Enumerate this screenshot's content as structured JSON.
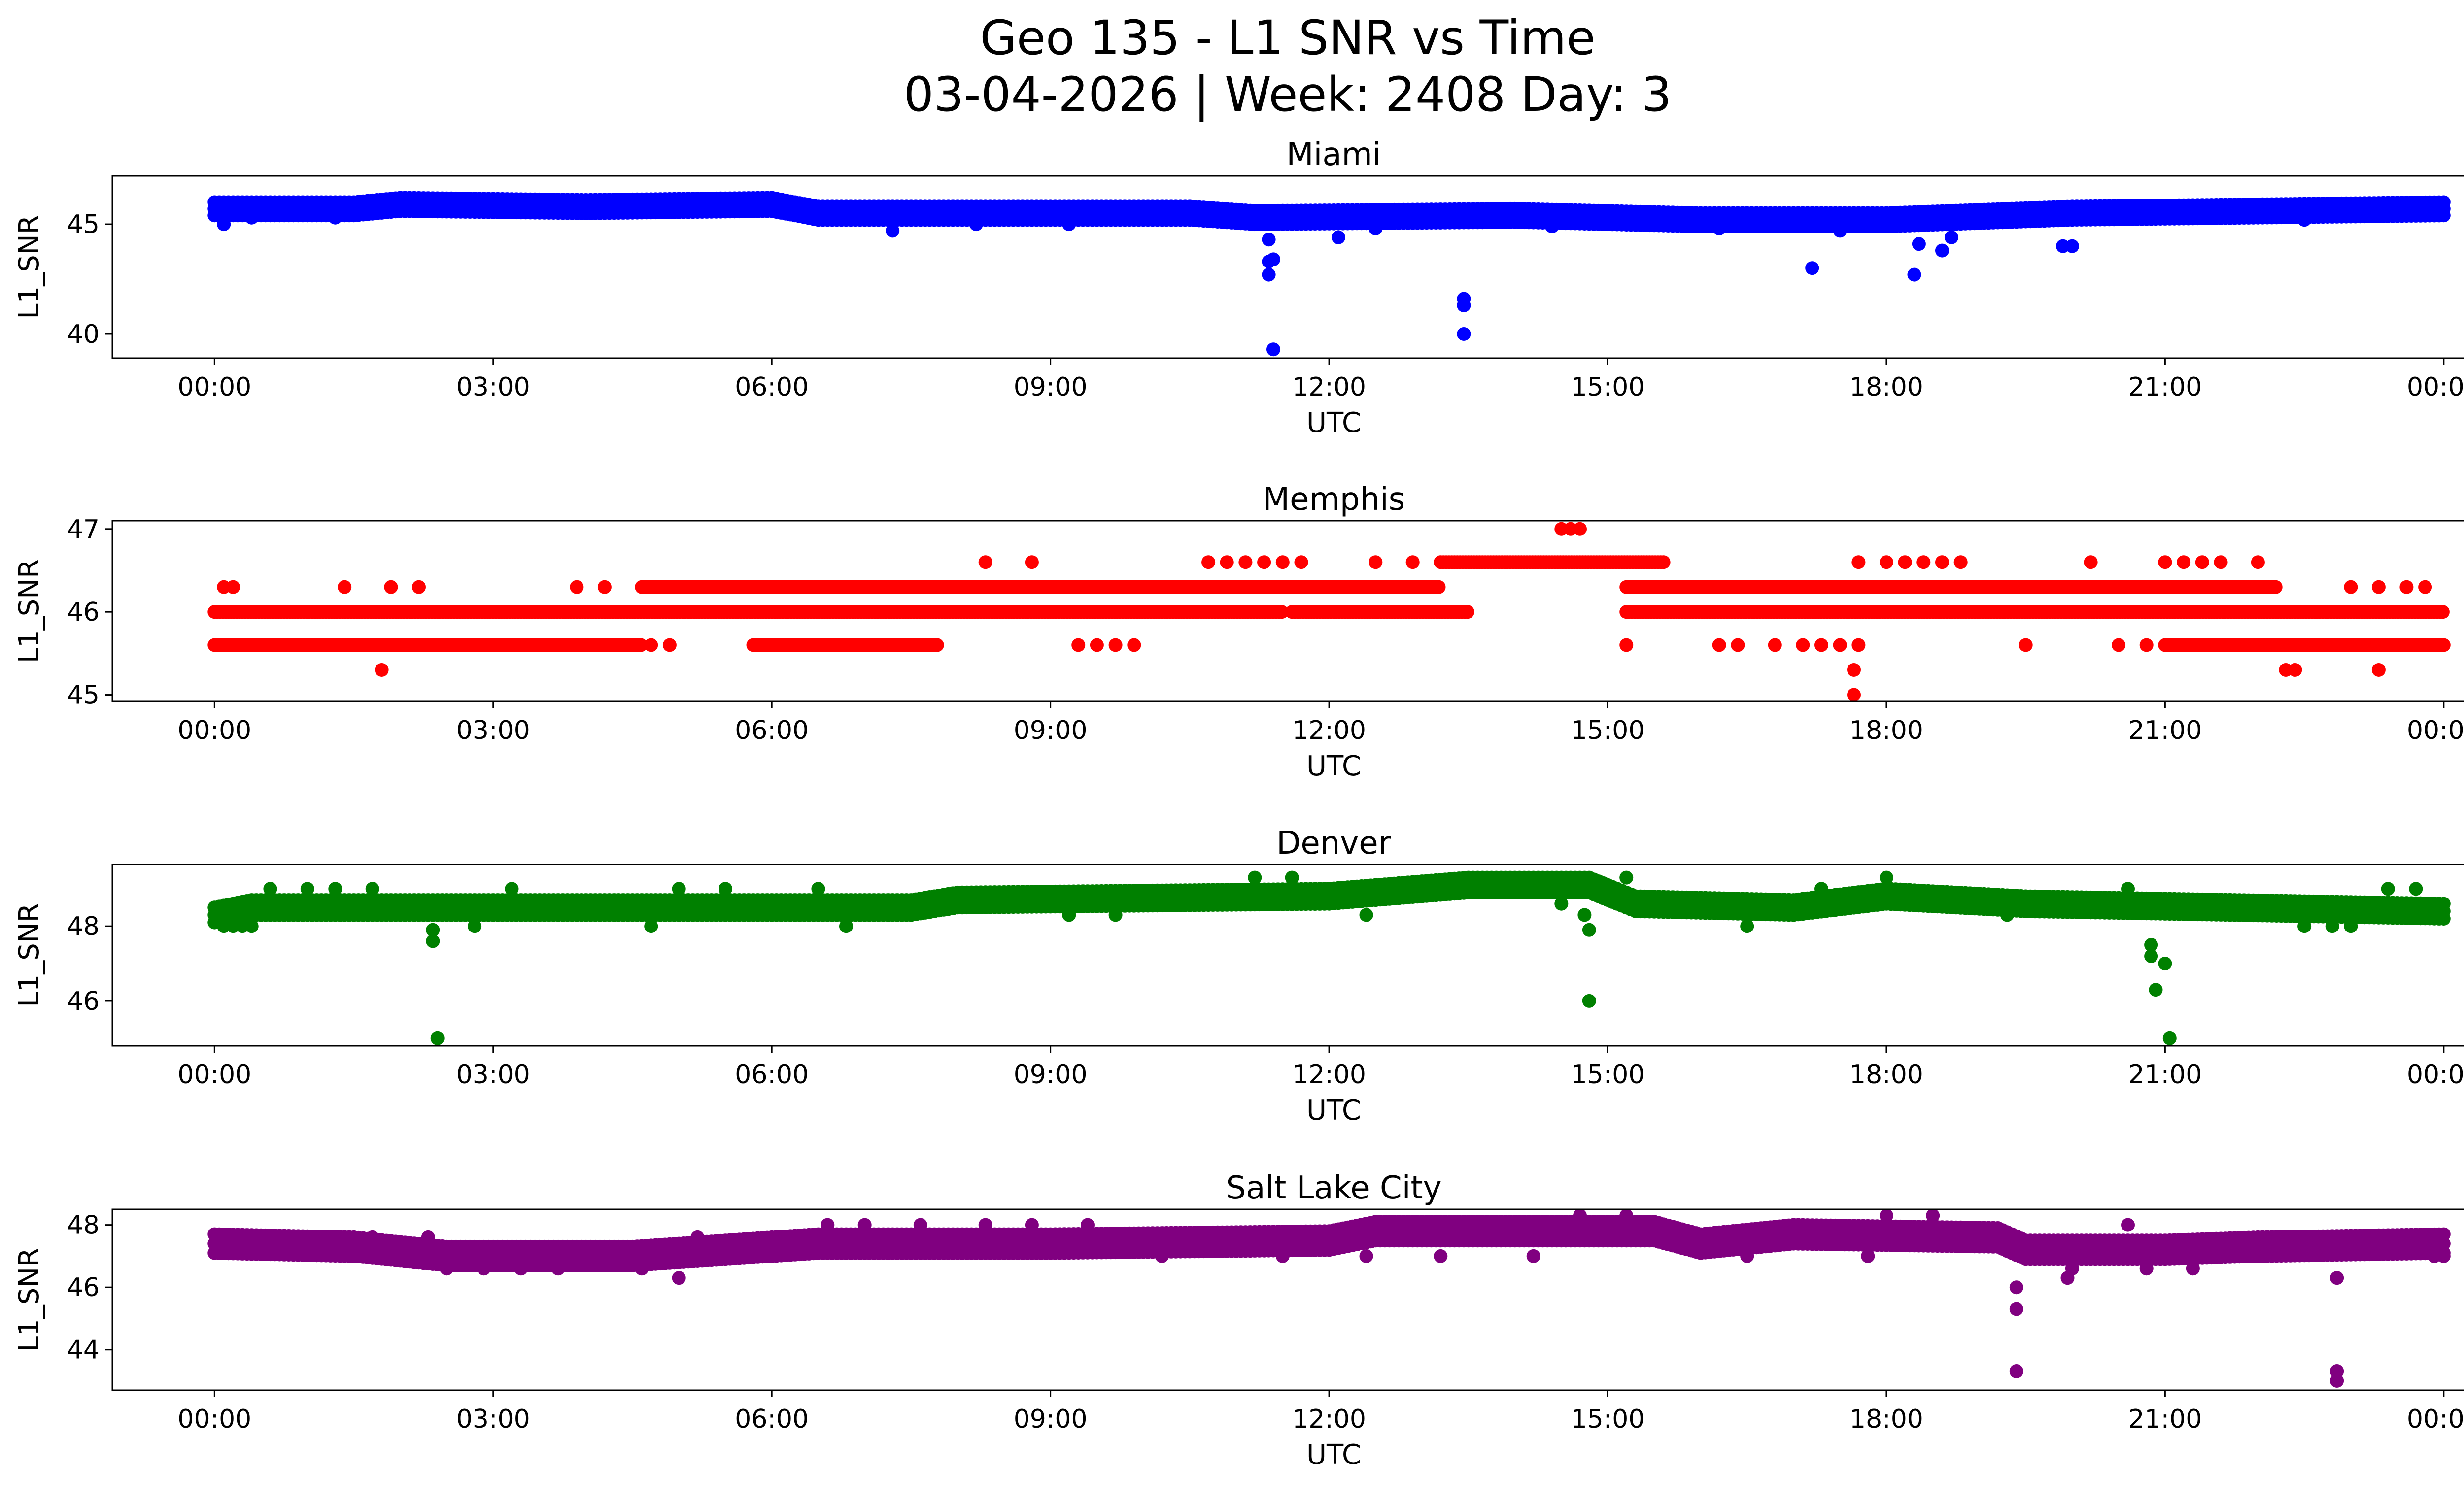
{
  "figure": {
    "title_line1": "Geo 135 - L1 SNR vs Time",
    "title_line2": "03-04-2026 | Week: 2408 Day: 3"
  },
  "chart_data": [
    {
      "type": "scatter",
      "title": "Miami",
      "xlabel": "UTC",
      "ylabel": "L1_SNR",
      "color": "#0000ff",
      "xlim_hours": [
        -1.1,
        25.2
      ],
      "ylim": [
        38.9,
        47.2
      ],
      "xticks_hours": [
        0,
        3,
        6,
        9,
        12,
        15,
        18,
        21,
        24
      ],
      "xtick_labels": [
        "00:00",
        "03:00",
        "06:00",
        "09:00",
        "12:00",
        "15:00",
        "18:00",
        "21:00",
        "00:00"
      ],
      "yticks": [
        40,
        45
      ],
      "baseline": [
        [
          0,
          45.8
        ],
        [
          1.5,
          45.8
        ],
        [
          2,
          46.0
        ],
        [
          4,
          45.9
        ],
        [
          6,
          46.0
        ],
        [
          6.5,
          45.6
        ],
        [
          9,
          45.6
        ],
        [
          10.5,
          45.6
        ],
        [
          11.2,
          45.4
        ],
        [
          14,
          45.5
        ],
        [
          16,
          45.3
        ],
        [
          18,
          45.3
        ],
        [
          20,
          45.6
        ],
        [
          24,
          45.8
        ]
      ],
      "band_levels": [
        -0.4,
        -0.1,
        0.2
      ],
      "band_step_hours": 0.05,
      "outliers": [
        [
          0.1,
          45.0
        ],
        [
          0.4,
          45.3
        ],
        [
          1.3,
          45.3
        ],
        [
          7.3,
          44.7
        ],
        [
          8.2,
          45.0
        ],
        [
          9.2,
          45.0
        ],
        [
          11.35,
          44.3
        ],
        [
          11.35,
          43.3
        ],
        [
          11.35,
          42.7
        ],
        [
          11.4,
          39.3
        ],
        [
          11.4,
          43.4
        ],
        [
          12.1,
          44.4
        ],
        [
          12.5,
          44.8
        ],
        [
          13.45,
          41.6
        ],
        [
          13.45,
          41.3
        ],
        [
          13.45,
          40.0
        ],
        [
          14.4,
          44.9
        ],
        [
          16.2,
          44.8
        ],
        [
          17.2,
          43.0
        ],
        [
          17.5,
          44.7
        ],
        [
          18.3,
          42.7
        ],
        [
          18.35,
          44.1
        ],
        [
          18.6,
          43.8
        ],
        [
          18.7,
          44.4
        ],
        [
          19.9,
          44.0
        ],
        [
          20.0,
          44.0
        ],
        [
          22.5,
          45.2
        ]
      ]
    },
    {
      "type": "scatter",
      "title": "Memphis",
      "xlabel": "UTC",
      "ylabel": "L1_SNR",
      "color": "#ff0000",
      "xlim_hours": [
        -1.1,
        25.2
      ],
      "ylim": [
        44.92,
        47.1
      ],
      "xticks_hours": [
        0,
        3,
        6,
        9,
        12,
        15,
        18,
        21,
        24
      ],
      "xtick_labels": [
        "00:00",
        "03:00",
        "06:00",
        "09:00",
        "12:00",
        "15:00",
        "18:00",
        "21:00",
        "00:00"
      ],
      "yticks": [
        45,
        46,
        47
      ],
      "levels": [
        {
          "y": 46.0,
          "segments": [
            [
              0,
              11.5
            ],
            [
              11.6,
              13.5
            ],
            [
              15.2,
              24.0
            ]
          ]
        },
        {
          "y": 45.6,
          "segments": [
            [
              0,
              4.6
            ],
            [
              5.8,
              7.8
            ],
            [
              21.0,
              24.0
            ]
          ]
        },
        {
          "y": 46.3,
          "segments": [
            [
              4.6,
              13.2
            ],
            [
              15.2,
              22.2
            ]
          ]
        },
        {
          "y": 46.6,
          "segments": [
            [
              13.2,
              15.6
            ]
          ]
        }
      ],
      "points": [
        [
          0.1,
          46.3
        ],
        [
          0.2,
          46.3
        ],
        [
          1.4,
          46.3
        ],
        [
          1.9,
          46.3
        ],
        [
          2.2,
          46.3
        ],
        [
          3.9,
          46.3
        ],
        [
          4.2,
          46.3
        ],
        [
          4.7,
          45.6
        ],
        [
          4.9,
          45.6
        ],
        [
          1.8,
          45.3
        ],
        [
          8.3,
          46.6
        ],
        [
          8.8,
          46.6
        ],
        [
          9.3,
          45.6
        ],
        [
          9.5,
          45.6
        ],
        [
          9.7,
          45.6
        ],
        [
          9.9,
          45.6
        ],
        [
          10.7,
          46.6
        ],
        [
          10.9,
          46.6
        ],
        [
          11.1,
          46.6
        ],
        [
          11.3,
          46.6
        ],
        [
          11.5,
          46.6
        ],
        [
          11.7,
          46.6
        ],
        [
          12.5,
          46.6
        ],
        [
          12.9,
          46.6
        ],
        [
          14.5,
          47.0
        ],
        [
          14.6,
          47.0
        ],
        [
          14.7,
          47.0
        ],
        [
          15.2,
          45.6
        ],
        [
          16.2,
          45.6
        ],
        [
          16.4,
          45.6
        ],
        [
          16.8,
          45.6
        ],
        [
          17.1,
          45.6
        ],
        [
          17.3,
          45.6
        ],
        [
          17.5,
          45.6
        ],
        [
          17.7,
          45.6
        ],
        [
          17.65,
          45.3
        ],
        [
          17.65,
          45.0
        ],
        [
          17.7,
          46.6
        ],
        [
          18.0,
          46.6
        ],
        [
          18.2,
          46.6
        ],
        [
          18.4,
          46.6
        ],
        [
          18.6,
          46.6
        ],
        [
          18.8,
          46.6
        ],
        [
          19.5,
          45.6
        ],
        [
          20.2,
          46.6
        ],
        [
          20.5,
          45.6
        ],
        [
          20.8,
          45.6
        ],
        [
          21.0,
          46.6
        ],
        [
          21.2,
          46.6
        ],
        [
          21.4,
          46.6
        ],
        [
          21.6,
          46.6
        ],
        [
          21.7,
          45.6
        ],
        [
          22.0,
          46.6
        ],
        [
          22.3,
          45.3
        ],
        [
          22.4,
          45.3
        ],
        [
          23.0,
          46.3
        ],
        [
          23.3,
          46.3
        ],
        [
          23.6,
          46.3
        ],
        [
          23.8,
          46.3
        ],
        [
          23.3,
          45.3
        ]
      ]
    },
    {
      "type": "scatter",
      "title": "Denver",
      "xlabel": "UTC",
      "ylabel": "L1_SNR",
      "color": "#008000",
      "xlim_hours": [
        -1.1,
        25.2
      ],
      "ylim": [
        44.8,
        49.65
      ],
      "xticks_hours": [
        0,
        3,
        6,
        9,
        12,
        15,
        18,
        21,
        24
      ],
      "xtick_labels": [
        "00:00",
        "03:00",
        "06:00",
        "09:00",
        "12:00",
        "15:00",
        "18:00",
        "21:00",
        "00:00"
      ],
      "yticks": [
        46,
        48
      ],
      "baseline": [
        [
          0,
          48.3
        ],
        [
          0.4,
          48.5
        ],
        [
          5,
          48.5
        ],
        [
          7.5,
          48.5
        ],
        [
          8,
          48.7
        ],
        [
          12,
          48.8
        ],
        [
          13.5,
          49.1
        ],
        [
          14.8,
          49.1
        ],
        [
          15.3,
          48.6
        ],
        [
          17,
          48.5
        ],
        [
          18,
          48.8
        ],
        [
          19.5,
          48.6
        ],
        [
          24,
          48.4
        ]
      ],
      "band_levels": [
        -0.2,
        0.0,
        0.2
      ],
      "band_step_hours": 0.05,
      "outliers": [
        [
          0.1,
          48.0
        ],
        [
          0.2,
          48.0
        ],
        [
          0.3,
          48.0
        ],
        [
          0.4,
          48.0
        ],
        [
          0.6,
          49.0
        ],
        [
          1.0,
          49.0
        ],
        [
          1.3,
          49.0
        ],
        [
          1.7,
          49.0
        ],
        [
          2.35,
          47.9
        ],
        [
          2.35,
          47.6
        ],
        [
          2.4,
          45.0
        ],
        [
          2.8,
          48.0
        ],
        [
          3.2,
          49.0
        ],
        [
          4.7,
          48.0
        ],
        [
          5.0,
          49.0
        ],
        [
          5.5,
          49.0
        ],
        [
          6.3,
          48.3
        ],
        [
          6.5,
          49.0
        ],
        [
          6.8,
          48.0
        ],
        [
          9.2,
          48.3
        ],
        [
          9.7,
          48.3
        ],
        [
          11.2,
          49.3
        ],
        [
          11.6,
          49.3
        ],
        [
          12.4,
          48.3
        ],
        [
          14.5,
          48.6
        ],
        [
          14.75,
          48.3
        ],
        [
          14.8,
          47.9
        ],
        [
          14.8,
          46.0
        ],
        [
          15.2,
          49.3
        ],
        [
          16.5,
          48.0
        ],
        [
          17.3,
          49.0
        ],
        [
          18.0,
          49.3
        ],
        [
          19.3,
          48.3
        ],
        [
          20.6,
          49.0
        ],
        [
          20.85,
          47.5
        ],
        [
          20.85,
          47.2
        ],
        [
          20.9,
          46.3
        ],
        [
          21.0,
          47.0
        ],
        [
          21.05,
          45.0
        ],
        [
          22.5,
          48.0
        ],
        [
          22.8,
          48.0
        ],
        [
          23.0,
          48.0
        ],
        [
          23.4,
          49.0
        ],
        [
          23.7,
          49.0
        ]
      ]
    },
    {
      "type": "scatter",
      "title": "Salt Lake City",
      "xlabel": "UTC",
      "ylabel": "L1_SNR",
      "color": "#800080",
      "xlim_hours": [
        -1.1,
        25.2
      ],
      "ylim": [
        42.7,
        48.5
      ],
      "xticks_hours": [
        0,
        3,
        6,
        9,
        12,
        15,
        18,
        21,
        24
      ],
      "xtick_labels": [
        "00:00",
        "03:00",
        "06:00",
        "09:00",
        "12:00",
        "15:00",
        "18:00",
        "21:00",
        "00:00"
      ],
      "yticks": [
        44,
        46,
        48
      ],
      "baseline": [
        [
          0,
          47.4
        ],
        [
          1.5,
          47.3
        ],
        [
          2.5,
          47.0
        ],
        [
          4.5,
          47.0
        ],
        [
          5.5,
          47.2
        ],
        [
          6.5,
          47.4
        ],
        [
          9,
          47.4
        ],
        [
          12,
          47.5
        ],
        [
          12.5,
          47.8
        ],
        [
          15.5,
          47.8
        ],
        [
          16,
          47.4
        ],
        [
          17,
          47.7
        ],
        [
          19.2,
          47.6
        ],
        [
          19.5,
          47.2
        ],
        [
          21,
          47.2
        ],
        [
          22,
          47.3
        ],
        [
          24,
          47.4
        ]
      ],
      "band_levels": [
        -0.3,
        0.0,
        0.3
      ],
      "band_step_hours": 0.05,
      "outliers": [
        [
          0.2,
          47.6
        ],
        [
          0.5,
          47.6
        ],
        [
          1.0,
          47.6
        ],
        [
          1.7,
          47.6
        ],
        [
          2.3,
          47.6
        ],
        [
          2.5,
          46.6
        ],
        [
          2.9,
          46.6
        ],
        [
          3.3,
          46.6
        ],
        [
          3.7,
          46.6
        ],
        [
          4.6,
          46.6
        ],
        [
          5.0,
          46.3
        ],
        [
          5.2,
          47.6
        ],
        [
          6.2,
          47.6
        ],
        [
          6.6,
          48.0
        ],
        [
          7.0,
          48.0
        ],
        [
          7.6,
          48.0
        ],
        [
          8.3,
          48.0
        ],
        [
          8.8,
          48.0
        ],
        [
          9.4,
          48.0
        ],
        [
          10.2,
          47.0
        ],
        [
          11.5,
          47.0
        ],
        [
          12.4,
          47.0
        ],
        [
          13.2,
          47.0
        ],
        [
          14.2,
          47.0
        ],
        [
          14.7,
          48.3
        ],
        [
          15.2,
          48.3
        ],
        [
          16.5,
          47.0
        ],
        [
          17.8,
          47.0
        ],
        [
          18.0,
          48.3
        ],
        [
          18.5,
          48.3
        ],
        [
          19.4,
          46.0
        ],
        [
          19.4,
          45.3
        ],
        [
          19.4,
          43.3
        ],
        [
          19.95,
          46.3
        ],
        [
          20.0,
          46.6
        ],
        [
          20.6,
          48.0
        ],
        [
          20.8,
          46.6
        ],
        [
          21.3,
          46.6
        ],
        [
          22.0,
          47.6
        ],
        [
          22.6,
          47.6
        ],
        [
          22.8,
          47.6
        ],
        [
          22.85,
          46.3
        ],
        [
          22.85,
          43.3
        ],
        [
          22.85,
          43.0
        ],
        [
          23.9,
          47.0
        ],
        [
          24.0,
          47.0
        ]
      ]
    }
  ]
}
